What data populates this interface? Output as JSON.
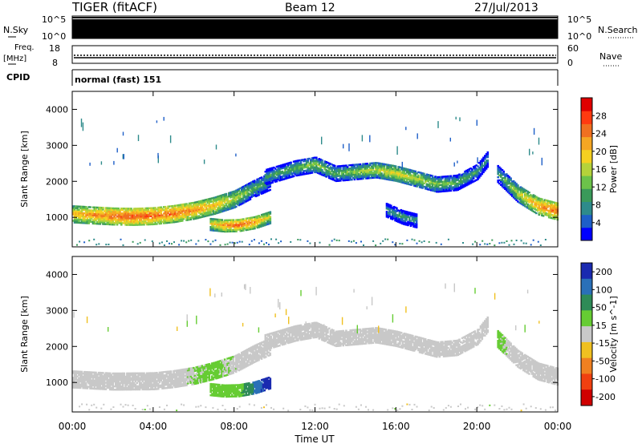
{
  "header": {
    "station": "TIGER (fitACF)",
    "beam": "Beam 12",
    "date": "27/Jul/2013"
  },
  "strips": {
    "nsky": {
      "label": "N.Sky",
      "ticks": [
        "10^5",
        "10^0"
      ],
      "right_label": "N.Search",
      "right_ticks": [
        "10^5",
        "10^0"
      ]
    },
    "freq": {
      "label_line1": "Freq.",
      "label_line2": "[MHz]",
      "ticks": [
        "18",
        "8"
      ],
      "right_label": "Nave",
      "right_ticks": [
        "60",
        "0"
      ]
    },
    "cpid": {
      "label": "CPID",
      "value": "normal (fast) 151"
    }
  },
  "chart_data": [
    {
      "type": "heatmap",
      "panel": "power",
      "ylabel": "Slant Range [km]",
      "yticks": [
        "4000",
        "3000",
        "2000",
        "1000"
      ],
      "ylim": [
        180,
        4500
      ],
      "xlabel": "Time UT",
      "xticks": [
        "00:00",
        "04:00",
        "08:00",
        "12:00",
        "16:00",
        "20:00",
        "00:00"
      ],
      "xlim_hours": [
        0,
        24
      ],
      "colorbar": {
        "label": "Power [dB]",
        "ticks": [
          "4",
          "8",
          "12",
          "16",
          "20",
          "24",
          "28"
        ],
        "range": [
          0,
          30
        ],
        "colors": [
          "#0000ff",
          "#1e5fc8",
          "#2e8b8b",
          "#3a9a5a",
          "#6cc24a",
          "#b5d23a",
          "#f5d020",
          "#f5a623",
          "#f07020",
          "#ff3a10",
          "#e00000"
        ]
      },
      "bands": [
        {
          "t": [
            0,
            1,
            2,
            3,
            4,
            5,
            6,
            7,
            8,
            9,
            9.8
          ],
          "range": [
            1080,
            1050,
            1020,
            1010,
            1030,
            1090,
            1180,
            1320,
            1500,
            1800,
            2000
          ],
          "width": 480,
          "power": [
            20,
            22,
            24,
            25,
            24,
            24,
            22,
            20,
            16,
            12,
            10
          ]
        },
        {
          "t": [
            6.8,
            7.5,
            8.2,
            9,
            9.8
          ],
          "range": [
            800,
            760,
            770,
            850,
            1000
          ],
          "width": 350,
          "power": [
            18,
            22,
            24,
            22,
            16
          ]
        },
        {
          "t": [
            9.5,
            11,
            12,
            13,
            14,
            15,
            16,
            17,
            18,
            19,
            20,
            20.5
          ],
          "range": [
            2100,
            2350,
            2450,
            2200,
            2250,
            2300,
            2200,
            2050,
            1900,
            1950,
            2250,
            2600
          ],
          "width": 420,
          "power": [
            10,
            12,
            14,
            12,
            14,
            16,
            18,
            16,
            14,
            12,
            10,
            8
          ]
        },
        {
          "t": [
            15.5,
            16.3,
            17
          ],
          "range": [
            1200,
            1000,
            900
          ],
          "width": 400,
          "power": [
            8,
            10,
            8
          ]
        },
        {
          "t": [
            21,
            22,
            23,
            24
          ],
          "range": [
            2200,
            1650,
            1300,
            1150
          ],
          "width": 480,
          "power": [
            10,
            16,
            22,
            24
          ]
        }
      ]
    },
    {
      "type": "heatmap",
      "panel": "velocity",
      "ylabel": "Slant Range [km]",
      "yticks": [
        "4000",
        "3000",
        "2000",
        "1000"
      ],
      "ylim": [
        180,
        4500
      ],
      "xlabel": "Time UT",
      "xticks": [
        "00:00",
        "04:00",
        "08:00",
        "12:00",
        "16:00",
        "20:00",
        "00:00"
      ],
      "xlim_hours": [
        0,
        24
      ],
      "colorbar": {
        "label": "Velocity [m s^-1]",
        "ticks": [
          "200",
          "100",
          "50",
          "15",
          "-15",
          "-50",
          "-100",
          "-200"
        ],
        "range": [
          -250,
          250
        ],
        "colors": [
          "#1a2ab0",
          "#2a70b8",
          "#2e8b57",
          "#66cc33",
          "#c8c8c8",
          "#f0c020",
          "#f08020",
          "#f04010",
          "#d00000"
        ]
      },
      "bands": [
        {
          "t": [
            0,
            2,
            4,
            5,
            6,
            7,
            8,
            9,
            9.8
          ],
          "range": [
            1080,
            1020,
            1030,
            1090,
            1180,
            1320,
            1500,
            1800,
            2000
          ],
          "width": 480,
          "velocity": [
            0,
            0,
            0,
            0,
            30,
            40,
            20,
            0,
            0
          ]
        },
        {
          "t": [
            6.8,
            7.5,
            8.2,
            9,
            9.8
          ],
          "range": [
            800,
            760,
            770,
            850,
            1000
          ],
          "width": 350,
          "velocity": [
            60,
            60,
            60,
            150,
            250
          ]
        },
        {
          "t": [
            9.5,
            11,
            12,
            13,
            14,
            15,
            16,
            17,
            18,
            19,
            20,
            20.5
          ],
          "range": [
            2100,
            2350,
            2450,
            2200,
            2250,
            2300,
            2200,
            2050,
            1900,
            1950,
            2250,
            2600
          ],
          "width": 420,
          "velocity": [
            0,
            0,
            0,
            0,
            0,
            0,
            0,
            0,
            0,
            0,
            0,
            0
          ]
        },
        {
          "t": [
            21,
            22,
            23,
            24
          ],
          "range": [
            2200,
            1650,
            1300,
            1150
          ],
          "width": 480,
          "velocity": [
            40,
            0,
            0,
            0
          ]
        }
      ]
    }
  ]
}
